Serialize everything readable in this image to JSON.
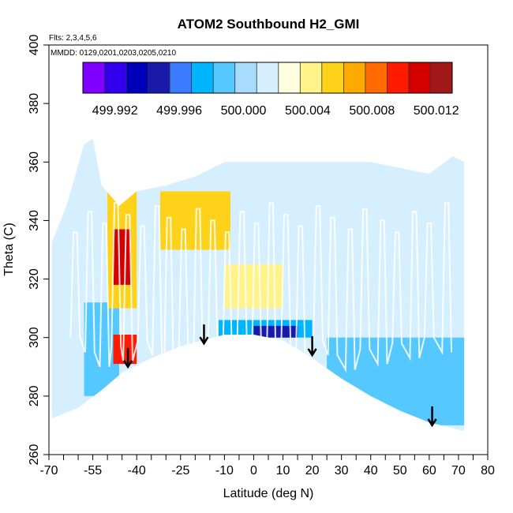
{
  "chart_data": {
    "type": "heatmap",
    "title": "ATOM2 Southbound H2_GMI",
    "flights_note": "Flts: 2,3,4,5,6",
    "dates_note": "MMDD: 0129,0201,0203,0205,0210",
    "xlabel": "Latitude (deg N)",
    "ylabel": "Theta (C)",
    "xlim": [
      -70,
      80
    ],
    "ylim": [
      260,
      400
    ],
    "x_ticks": [
      -70,
      -55,
      -40,
      -25,
      -10,
      0,
      10,
      20,
      30,
      40,
      50,
      60,
      70,
      80
    ],
    "x_tick_labels": [
      "-70",
      "-55",
      "-40",
      "-25",
      "-10",
      "0",
      "10",
      "20",
      "30",
      "40",
      "50",
      "60",
      "70",
      "80"
    ],
    "x_minor_ticks": [
      -65,
      -60,
      -50,
      -45,
      -35,
      -30,
      -20,
      -15,
      -5,
      5,
      15,
      25,
      35,
      45,
      55,
      65,
      75
    ],
    "y_ticks": [
      260,
      280,
      300,
      320,
      340,
      360,
      380,
      400
    ],
    "y_tick_labels": [
      "260",
      "280",
      "300",
      "320",
      "340",
      "360",
      "380",
      "400"
    ],
    "colorbar": {
      "min": 499.99,
      "max": 500.013,
      "tick_values": [
        499.992,
        499.996,
        500.0,
        500.004,
        500.008,
        500.012
      ],
      "tick_labels": [
        "499.992",
        "499.996",
        "500.000",
        "500.004",
        "500.008",
        "500.012"
      ],
      "colors": [
        "#7f00ff",
        "#3300ee",
        "#0000bb",
        "#1a1aaa",
        "#3a7bff",
        "#00b5ff",
        "#55c8ff",
        "#a8dcff",
        "#d6efff",
        "#ffffe0",
        "#fff38a",
        "#ffd21a",
        "#ffaa00",
        "#ff6a00",
        "#ff1a00",
        "#d40000",
        "#a01818"
      ]
    },
    "arrows": [
      {
        "lat": -43,
        "theta": 290
      },
      {
        "lat": -17,
        "theta": 298
      },
      {
        "lat": 20,
        "theta": 294
      },
      {
        "lat": 61,
        "theta": 270
      }
    ],
    "regions": [
      {
        "x": [
          -70,
          72
        ],
        "y": [
          268,
          370
        ],
        "value": 500.001,
        "label": "background"
      },
      {
        "x": [
          -58,
          -46
        ],
        "y": [
          280,
          312
        ],
        "value": 499.999,
        "label": "southern-lower-blue"
      },
      {
        "x": [
          -50,
          -40
        ],
        "y": [
          310,
          350
        ],
        "value": 500.006,
        "label": "warm-column"
      },
      {
        "x": [
          -48,
          -42
        ],
        "y": [
          318,
          337
        ],
        "value": 500.011,
        "label": "red-core-upper"
      },
      {
        "x": [
          -48,
          -40
        ],
        "y": [
          291,
          301
        ],
        "value": 500.01,
        "label": "red-core-lower"
      },
      {
        "x": [
          -32,
          -8
        ],
        "y": [
          330,
          350
        ],
        "value": 500.005,
        "label": "upper-yellow-band"
      },
      {
        "x": [
          -12,
          20
        ],
        "y": [
          300,
          306
        ],
        "value": 499.998,
        "label": "tropopause-blue"
      },
      {
        "x": [
          0,
          15
        ],
        "y": [
          300,
          304
        ],
        "value": 499.995,
        "label": "deep-blue-core"
      },
      {
        "x": [
          25,
          72
        ],
        "y": [
          270,
          300
        ],
        "value": 499.999,
        "label": "northern-lower-cyan"
      },
      {
        "x": [
          -10,
          10
        ],
        "y": [
          310,
          325
        ],
        "value": 500.004,
        "label": "central-yellow"
      }
    ]
  }
}
